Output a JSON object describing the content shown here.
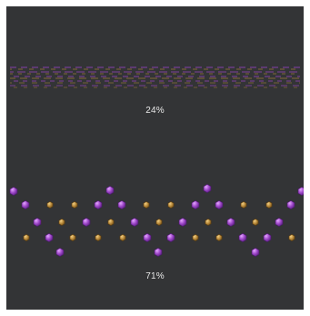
{
  "screen": {
    "background": "#333436",
    "accent_purple": "#9b44c6",
    "accent_orange": "#b98a3a"
  },
  "loaders": [
    {
      "name": "striped-progress-loader",
      "label": "24%",
      "progress": 0.24
    },
    {
      "name": "gem-wave-loader",
      "label": "71%",
      "progress": 0.71
    }
  ]
}
